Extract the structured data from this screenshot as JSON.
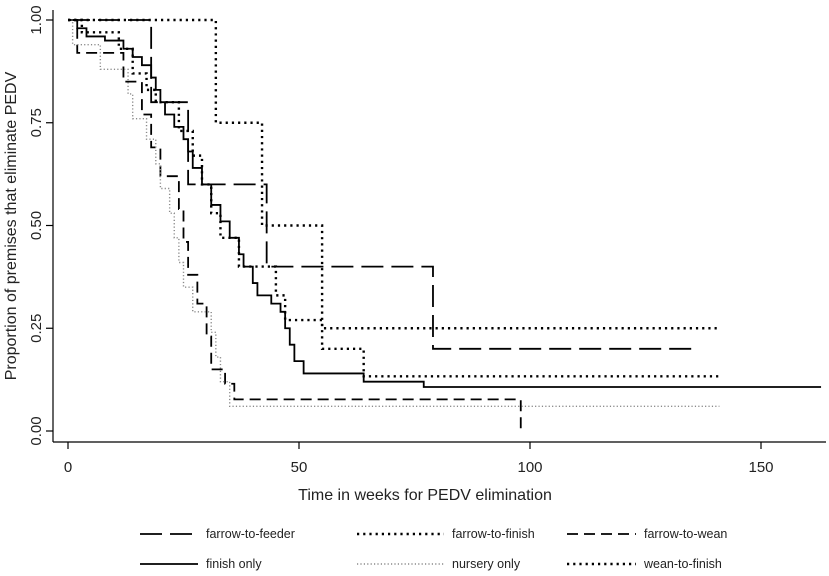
{
  "chart_data": {
    "type": "line",
    "step": true,
    "title": "",
    "xlabel": "Time in weeks for PEDV elimination",
    "ylabel": "Proportion of premises that eliminate PEDV",
    "xlim": [
      -3,
      165
    ],
    "ylim": [
      -0.03,
      1.02
    ],
    "xticks": [
      0,
      50,
      100,
      150
    ],
    "xtick_labels": [
      "0",
      "50",
      "100",
      "150"
    ],
    "yticks": [
      0,
      0.25,
      0.5,
      0.75,
      1
    ],
    "ytick_labels": [
      "0.00",
      "0.25",
      "0.50",
      "0.75",
      "1.00"
    ],
    "grid": false,
    "legend_position": "bottom",
    "series": [
      {
        "name": "farrow-to-feeder",
        "style": "longdash",
        "points": [
          [
            0,
            1.0
          ],
          [
            18,
            1.0
          ],
          [
            18,
            0.8
          ],
          [
            26,
            0.8
          ],
          [
            26,
            0.6
          ],
          [
            43,
            0.6
          ],
          [
            43,
            0.4
          ],
          [
            79,
            0.4
          ],
          [
            79,
            0.2
          ],
          [
            135,
            0.2
          ]
        ]
      },
      {
        "name": "farrow-to-finish",
        "style": "dot",
        "points": [
          [
            0,
            1.0
          ],
          [
            3,
            1.0
          ],
          [
            3,
            0.97
          ],
          [
            11,
            0.97
          ],
          [
            11,
            0.93
          ],
          [
            14,
            0.93
          ],
          [
            14,
            0.87
          ],
          [
            17,
            0.87
          ],
          [
            17,
            0.83
          ],
          [
            19,
            0.83
          ],
          [
            19,
            0.8
          ],
          [
            24,
            0.8
          ],
          [
            24,
            0.73
          ],
          [
            27,
            0.73
          ],
          [
            27,
            0.67
          ],
          [
            29,
            0.67
          ],
          [
            29,
            0.6
          ],
          [
            31,
            0.6
          ],
          [
            31,
            0.53
          ],
          [
            33,
            0.53
          ],
          [
            33,
            0.47
          ],
          [
            37,
            0.47
          ],
          [
            37,
            0.4
          ],
          [
            45,
            0.4
          ],
          [
            45,
            0.33
          ],
          [
            47,
            0.33
          ],
          [
            47,
            0.27
          ],
          [
            55,
            0.27
          ],
          [
            55,
            0.2
          ],
          [
            64,
            0.2
          ],
          [
            64,
            0.133
          ],
          [
            141,
            0.133
          ]
        ]
      },
      {
        "name": "farrow-to-wean",
        "style": "dash",
        "points": [
          [
            0,
            1.0
          ],
          [
            2,
            1.0
          ],
          [
            2,
            0.92
          ],
          [
            12,
            0.92
          ],
          [
            12,
            0.85
          ],
          [
            16,
            0.85
          ],
          [
            16,
            0.77
          ],
          [
            18,
            0.77
          ],
          [
            18,
            0.69
          ],
          [
            20,
            0.69
          ],
          [
            20,
            0.62
          ],
          [
            24,
            0.62
          ],
          [
            24,
            0.54
          ],
          [
            25,
            0.54
          ],
          [
            25,
            0.46
          ],
          [
            26,
            0.46
          ],
          [
            26,
            0.38
          ],
          [
            28,
            0.38
          ],
          [
            28,
            0.31
          ],
          [
            30,
            0.31
          ],
          [
            30,
            0.23
          ],
          [
            31,
            0.23
          ],
          [
            31,
            0.15
          ],
          [
            34,
            0.15
          ],
          [
            34,
            0.115
          ],
          [
            36,
            0.115
          ],
          [
            36,
            0.077
          ],
          [
            98,
            0.077
          ],
          [
            98,
            0.0
          ]
        ]
      },
      {
        "name": "finish only",
        "style": "solid",
        "points": [
          [
            0,
            1.0
          ],
          [
            2,
            1.0
          ],
          [
            2,
            0.98
          ],
          [
            4,
            0.98
          ],
          [
            4,
            0.96
          ],
          [
            8,
            0.96
          ],
          [
            8,
            0.95
          ],
          [
            12,
            0.95
          ],
          [
            12,
            0.93
          ],
          [
            14,
            0.93
          ],
          [
            14,
            0.91
          ],
          [
            16,
            0.91
          ],
          [
            16,
            0.89
          ],
          [
            18,
            0.89
          ],
          [
            18,
            0.86
          ],
          [
            19,
            0.86
          ],
          [
            19,
            0.83
          ],
          [
            20,
            0.83
          ],
          [
            20,
            0.8
          ],
          [
            21,
            0.8
          ],
          [
            21,
            0.77
          ],
          [
            23,
            0.77
          ],
          [
            23,
            0.74
          ],
          [
            25,
            0.74
          ],
          [
            25,
            0.71
          ],
          [
            26,
            0.71
          ],
          [
            26,
            0.68
          ],
          [
            27,
            0.68
          ],
          [
            27,
            0.64
          ],
          [
            29,
            0.64
          ],
          [
            29,
            0.6
          ],
          [
            31,
            0.6
          ],
          [
            31,
            0.55
          ],
          [
            33,
            0.55
          ],
          [
            33,
            0.51
          ],
          [
            35,
            0.51
          ],
          [
            35,
            0.47
          ],
          [
            37,
            0.47
          ],
          [
            37,
            0.43
          ],
          [
            38,
            0.43
          ],
          [
            38,
            0.4
          ],
          [
            40,
            0.4
          ],
          [
            40,
            0.36
          ],
          [
            41,
            0.36
          ],
          [
            41,
            0.33
          ],
          [
            44,
            0.33
          ],
          [
            44,
            0.31
          ],
          [
            46,
            0.31
          ],
          [
            46,
            0.29
          ],
          [
            47,
            0.29
          ],
          [
            47,
            0.25
          ],
          [
            48,
            0.25
          ],
          [
            48,
            0.21
          ],
          [
            49,
            0.21
          ],
          [
            49,
            0.17
          ],
          [
            51,
            0.17
          ],
          [
            51,
            0.14
          ],
          [
            64,
            0.14
          ],
          [
            64,
            0.12
          ],
          [
            77,
            0.12
          ],
          [
            77,
            0.107
          ],
          [
            163,
            0.107
          ]
        ]
      },
      {
        "name": "nursery only",
        "style": "finedot",
        "points": [
          [
            0,
            1.0
          ],
          [
            1,
            1.0
          ],
          [
            1,
            0.94
          ],
          [
            7,
            0.94
          ],
          [
            7,
            0.88
          ],
          [
            13,
            0.88
          ],
          [
            13,
            0.82
          ],
          [
            14,
            0.82
          ],
          [
            14,
            0.76
          ],
          [
            17,
            0.76
          ],
          [
            17,
            0.71
          ],
          [
            19,
            0.71
          ],
          [
            19,
            0.65
          ],
          [
            20,
            0.65
          ],
          [
            20,
            0.59
          ],
          [
            22,
            0.59
          ],
          [
            22,
            0.53
          ],
          [
            23,
            0.53
          ],
          [
            23,
            0.47
          ],
          [
            24,
            0.47
          ],
          [
            24,
            0.41
          ],
          [
            25,
            0.41
          ],
          [
            25,
            0.35
          ],
          [
            27,
            0.35
          ],
          [
            27,
            0.29
          ],
          [
            31,
            0.29
          ],
          [
            31,
            0.24
          ],
          [
            32,
            0.24
          ],
          [
            32,
            0.18
          ],
          [
            33,
            0.18
          ],
          [
            33,
            0.12
          ],
          [
            35,
            0.12
          ],
          [
            35,
            0.06
          ],
          [
            141,
            0.06
          ]
        ]
      },
      {
        "name": "wean-to-finish",
        "style": "dot",
        "points": [
          [
            0,
            1.0
          ],
          [
            32,
            1.0
          ],
          [
            32,
            0.75
          ],
          [
            42,
            0.75
          ],
          [
            42,
            0.5
          ],
          [
            55,
            0.5
          ],
          [
            55,
            0.25
          ],
          [
            141,
            0.25
          ]
        ]
      }
    ]
  }
}
